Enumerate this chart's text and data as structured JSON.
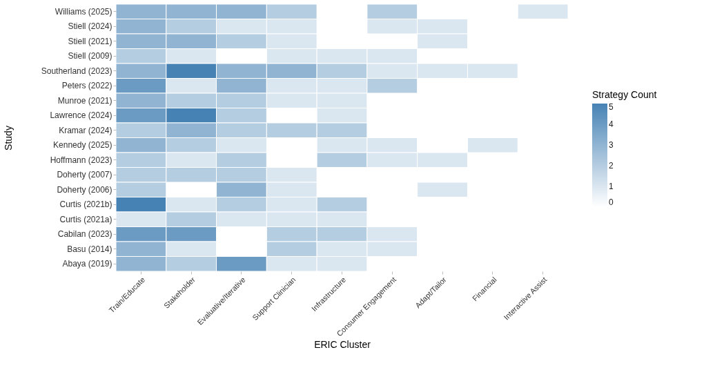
{
  "chart_data": {
    "type": "heatmap",
    "xlabel": "ERIC Cluster",
    "ylabel": "Study",
    "clabel": "Strategy Count",
    "categories": [
      "Train/Educate",
      "Stakeholder",
      "Evaluative/Iterative",
      "Support Clinician",
      "Infrastructure",
      "Consumer Engagement",
      "Adapt/Tailor",
      "Financial",
      "Interactive Assist"
    ],
    "y_categories": [
      "Williams (2025)",
      "Stiell (2024)",
      "Stiell (2021)",
      "Stiell (2009)",
      "Southerland (2023)",
      "Peters (2022)",
      "Munroe (2021)",
      "Lawrence (2024)",
      "Kramar (2024)",
      "Kennedy (2025)",
      "Hoffmann (2023)",
      "Doherty (2007)",
      "Doherty (2006)",
      "Curtis (2021b)",
      "Curtis (2021a)",
      "Cabilan (2023)",
      "Basu (2014)",
      "Abaya (2019)"
    ],
    "cells": [
      [
        3,
        3,
        3,
        2,
        null,
        2,
        null,
        null,
        1
      ],
      [
        3,
        2,
        1,
        1,
        null,
        1,
        1,
        null,
        null
      ],
      [
        3,
        3,
        2,
        1,
        null,
        null,
        1,
        null,
        null
      ],
      [
        2,
        1,
        null,
        1,
        1,
        1,
        null,
        null,
        null
      ],
      [
        3,
        5,
        3,
        3,
        2,
        1,
        1,
        1,
        null
      ],
      [
        4,
        1,
        3,
        1,
        1,
        2,
        null,
        null,
        null
      ],
      [
        3,
        2,
        2,
        1,
        1,
        null,
        null,
        null,
        null
      ],
      [
        4,
        5,
        2,
        null,
        1,
        null,
        null,
        null,
        null
      ],
      [
        2,
        3,
        2,
        2,
        2,
        null,
        null,
        null,
        null
      ],
      [
        3,
        2,
        1,
        null,
        1,
        1,
        null,
        1,
        null
      ],
      [
        2,
        1,
        2,
        null,
        2,
        1,
        1,
        null,
        null
      ],
      [
        2,
        2,
        2,
        1,
        null,
        null,
        null,
        null,
        null
      ],
      [
        2,
        null,
        3,
        1,
        null,
        null,
        1,
        null,
        null
      ],
      [
        5,
        1,
        2,
        1,
        2,
        null,
        null,
        null,
        null
      ],
      [
        1,
        2,
        1,
        1,
        1,
        null,
        null,
        null,
        null
      ],
      [
        4,
        4,
        null,
        2,
        2,
        1,
        null,
        null,
        null
      ],
      [
        3,
        1,
        null,
        2,
        1,
        1,
        null,
        null,
        null
      ],
      [
        3,
        2,
        4,
        1,
        1,
        null,
        null,
        null,
        null
      ]
    ],
    "clim": [
      0,
      5
    ],
    "cticks": [
      0,
      1,
      2,
      3,
      4,
      5
    ],
    "colors": [
      "#ffffff",
      "#4682b4"
    ],
    "grid": false
  }
}
